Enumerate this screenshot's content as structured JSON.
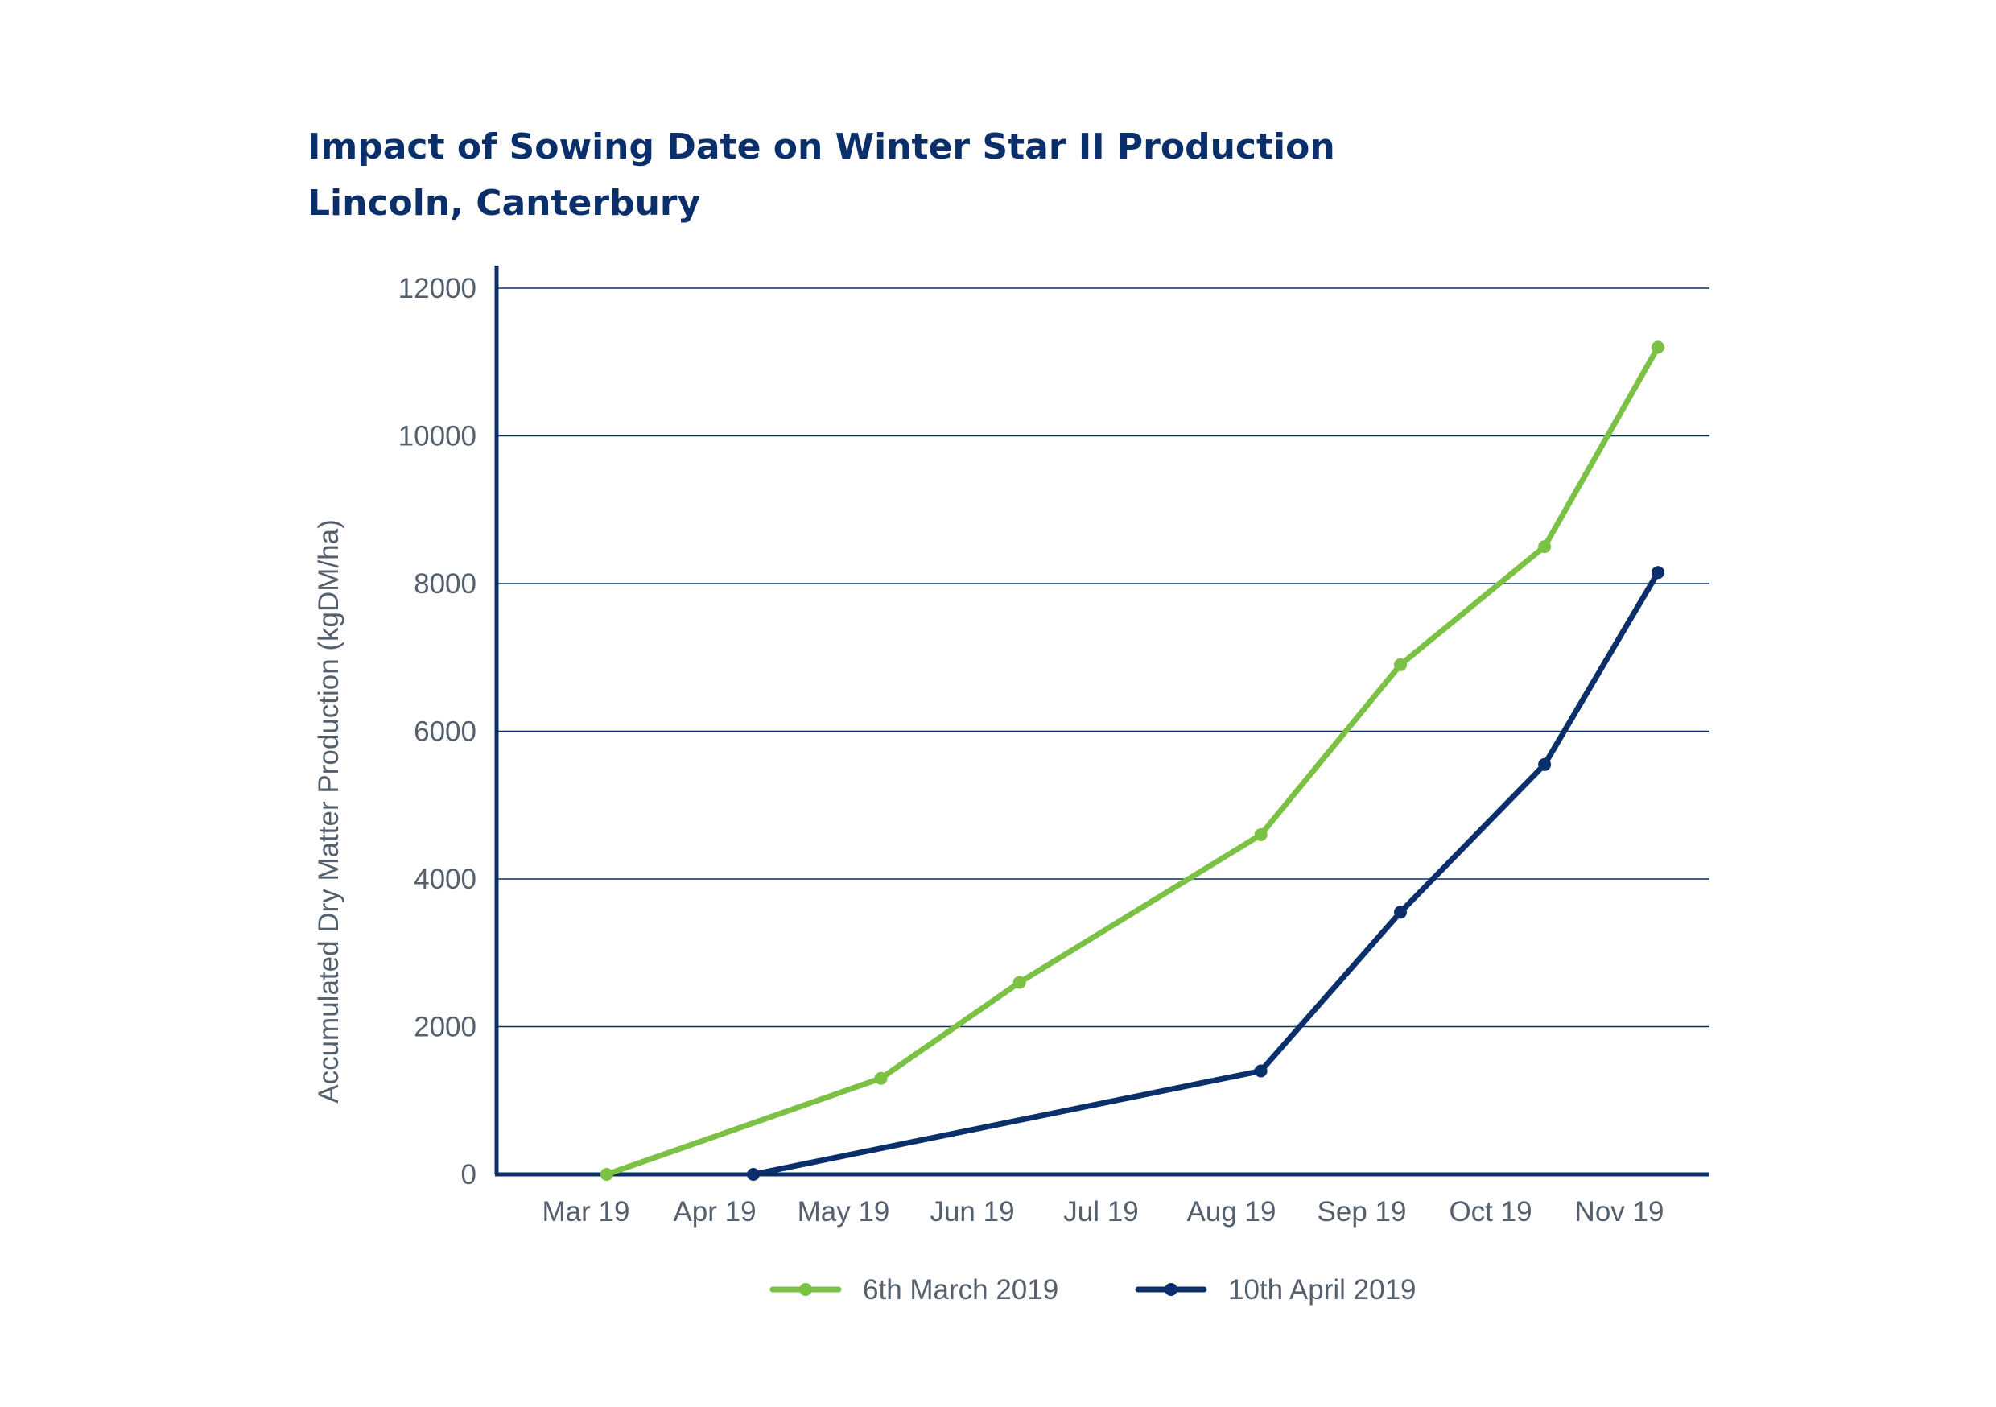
{
  "chart_data": {
    "type": "line",
    "title": "Impact of Sowing Date on Winter Star II Production",
    "subtitle": "Lincoln, Canterbury",
    "ylabel": "Accumulated Dry Matter Production (kgDM/ha)",
    "xlabel": "",
    "categories": [
      "Mar 19",
      "Apr 19",
      "May 19",
      "Jun 19",
      "Jul 19",
      "Aug 19",
      "Sep 19",
      "Oct 19",
      "Nov 19"
    ],
    "ylim": [
      0,
      12000
    ],
    "yticks": [
      "0",
      "2000",
      "4000",
      "6000",
      "8000",
      "10000",
      "12000"
    ],
    "grid": true,
    "legend_position": "bottom",
    "series": [
      {
        "name": "6th March 2019",
        "color": "#7bc143",
        "points": [
          {
            "x": "2019-03-06",
            "y": 0
          },
          {
            "x": "2019-05-10",
            "y": 1300
          },
          {
            "x": "2019-06-12",
            "y": 2600
          },
          {
            "x": "2019-08-08",
            "y": 4600
          },
          {
            "x": "2019-09-10",
            "y": 6900
          },
          {
            "x": "2019-10-14",
            "y": 8500
          },
          {
            "x": "2019-11-10",
            "y": 11200
          }
        ]
      },
      {
        "name": "10th April 2019",
        "color": "#0b2f6a",
        "points": [
          {
            "x": "2019-04-10",
            "y": 0
          },
          {
            "x": "2019-08-08",
            "y": 1400
          },
          {
            "x": "2019-09-10",
            "y": 3550
          },
          {
            "x": "2019-10-14",
            "y": 5550
          },
          {
            "x": "2019-11-10",
            "y": 8150
          }
        ]
      }
    ]
  }
}
